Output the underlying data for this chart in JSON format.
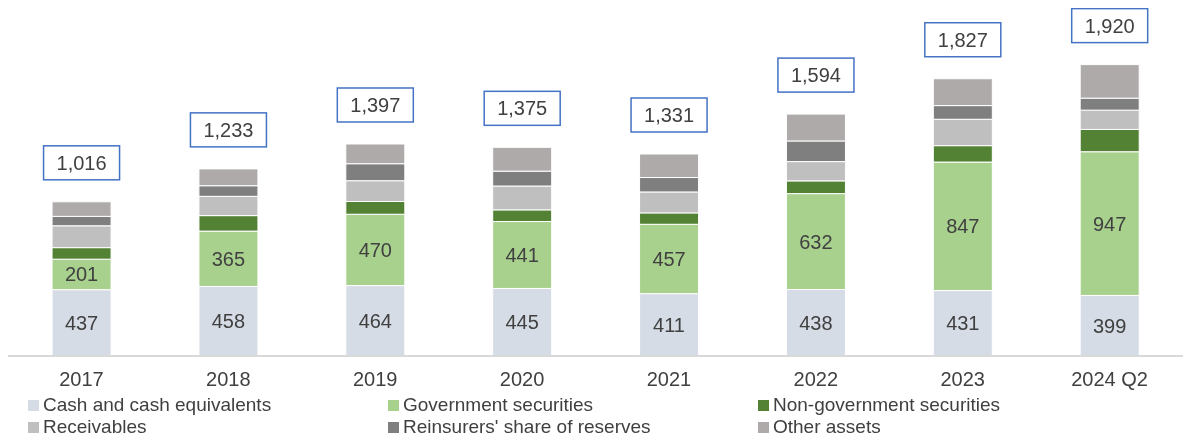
{
  "chart_data": {
    "type": "bar",
    "stacked": true,
    "categories": [
      "2017",
      "2018",
      "2019",
      "2020",
      "2021",
      "2022",
      "2023",
      "2024 Q2"
    ],
    "series": [
      {
        "name": "Cash and cash equivalents",
        "color": "#d6dce5",
        "values": [
          437,
          458,
          464,
          445,
          411,
          438,
          431,
          399
        ],
        "value_labels": [
          "437",
          "458",
          "464",
          "445",
          "411",
          "438",
          "431",
          "399"
        ]
      },
      {
        "name": "Government securities",
        "color": "#a9d18e",
        "values": [
          201,
          365,
          470,
          441,
          457,
          632,
          847,
          947
        ],
        "value_labels": [
          "201",
          "365",
          "470",
          "441",
          "457",
          "632",
          "847",
          "947"
        ]
      },
      {
        "name": "Non-government securities",
        "color": "#548235",
        "values": [
          76,
          102,
          84,
          77,
          75,
          84,
          108,
          147
        ]
      },
      {
        "name": "Receivables",
        "color": "#bfbfbf",
        "values": [
          144,
          127,
          137,
          157,
          138,
          127,
          174,
          127
        ]
      },
      {
        "name": "Reinsurers' share of reserves",
        "color": "#7f7f7f",
        "values": [
          62,
          70,
          112,
          98,
          95,
          136,
          90,
          79
        ]
      },
      {
        "name": "Other assets",
        "color": "#aeaaaa",
        "values": [
          96,
          111,
          130,
          157,
          155,
          177,
          177,
          221
        ]
      }
    ],
    "totals": [
      "1,016",
      "1,233",
      "1,397",
      "1,375",
      "1,331",
      "1,594",
      "1,827",
      "1,920"
    ],
    "legend": "bottom",
    "grid": false
  }
}
